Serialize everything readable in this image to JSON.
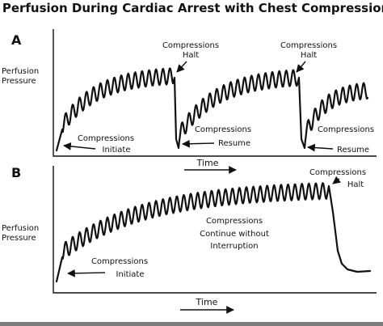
{
  "figure": {
    "title": "Perfusion During Cardiac Arrest with Chest Compressions"
  },
  "panel_a": {
    "letter": "A",
    "ylabel": [
      "Perfusion",
      "Pressure"
    ],
    "annotations": {
      "halt_1": [
        "Compressions",
        "Halt"
      ],
      "halt_2": [
        "Compressions",
        "Halt"
      ],
      "initiate": [
        "Compressions",
        "Initiate"
      ],
      "resume_1": [
        "Compressions",
        "Resume"
      ],
      "resume_2": [
        "Compressions",
        "Resume"
      ]
    },
    "time_label": "Time"
  },
  "panel_b": {
    "letter": "B",
    "ylabel": [
      "Perfusion",
      "Pressure"
    ],
    "annotations": {
      "halt": [
        "Compressions",
        "Halt"
      ],
      "continue": [
        "Compressions",
        "Continue without",
        "Interruption"
      ],
      "initiate": [
        "Compressions",
        "Initiate"
      ]
    },
    "time_label": "Time"
  }
}
